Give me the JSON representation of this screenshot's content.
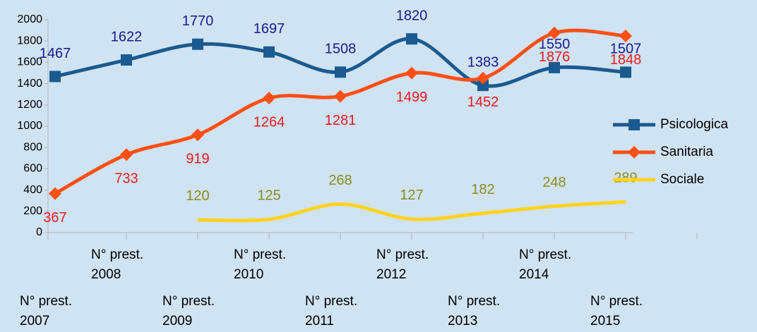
{
  "chart_data": {
    "type": "line",
    "categories": [
      "N° prest. 2007",
      "N° prest. 2008",
      "N° prest. 2009",
      "N° prest. 2010",
      "N° prest. 2011",
      "N° prest. 2012",
      "N° prest. 2013",
      "N° prest. 2014",
      "N° prest. 2015"
    ],
    "series": [
      {
        "name": "Psicologica",
        "color": "#1b5a8e",
        "label_color": "#1a1a8c",
        "marker": "square",
        "values": [
          1467,
          1622,
          1770,
          1697,
          1508,
          1820,
          1383,
          1550,
          1507
        ]
      },
      {
        "name": "Sanitaria",
        "color": "#ff4f14",
        "label_color": "#ee1c1c",
        "marker": "diamond",
        "values": [
          367,
          733,
          919,
          1264,
          1281,
          1499,
          1452,
          1876,
          1848
        ]
      },
      {
        "name": "Sociale",
        "color": "#ffd320",
        "label_color": "#8c8c1a",
        "marker": "none",
        "values": [
          null,
          null,
          120,
          125,
          268,
          127,
          182,
          248,
          289
        ]
      }
    ],
    "ylim": [
      0,
      2000
    ],
    "yticks": [
      0,
      200,
      400,
      600,
      800,
      1000,
      1200,
      1400,
      1600,
      1800,
      2000
    ],
    "grid": false,
    "legend": "right",
    "smooth": true
  }
}
